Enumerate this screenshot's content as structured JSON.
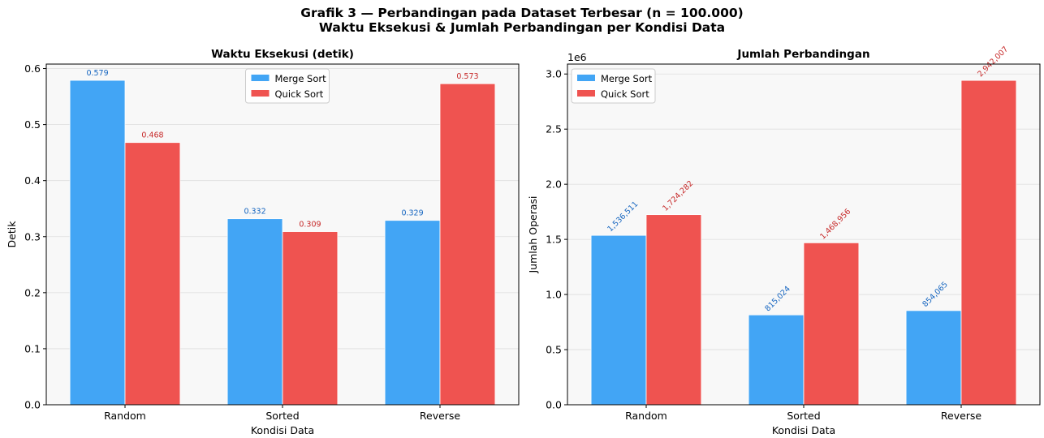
{
  "figure": {
    "suptitle_line1": "Grafik 3 — Perbandingan pada Dataset Terbesar (n = 100.000)",
    "suptitle_line2": "Waktu Eksekusi & Jumlah Perbandingan per Kondisi Data"
  },
  "colors": {
    "merge": "#42a5f5",
    "quick": "#ef5350",
    "merge_label": "#1565c0",
    "quick_label": "#c62828",
    "plot_bg": "#f8f8f8",
    "grid": "#dddddd"
  },
  "chart_data": [
    {
      "type": "bar",
      "title": "Waktu Eksekusi (detik)",
      "xlabel": "Kondisi Data",
      "ylabel": "Detik",
      "categories": [
        "Random",
        "Sorted",
        "Reverse"
      ],
      "series": [
        {
          "name": "Merge Sort",
          "values": [
            0.579,
            0.332,
            0.329
          ],
          "labels": [
            "0.579",
            "0.332",
            "0.329"
          ]
        },
        {
          "name": "Quick Sort",
          "values": [
            0.468,
            0.309,
            0.573
          ],
          "labels": [
            "0.468",
            "0.309",
            "0.573"
          ]
        }
      ],
      "ylim": [
        0,
        0.608
      ],
      "yticks": [
        0.0,
        0.1,
        0.2,
        0.3,
        0.4,
        0.5,
        0.6
      ],
      "ytick_labels": [
        "0.0",
        "0.1",
        "0.2",
        "0.3",
        "0.4",
        "0.5",
        "0.6"
      ],
      "offset_text": "",
      "grid": true,
      "legend": "upper-center",
      "label_rotation": 0
    },
    {
      "type": "bar",
      "title": "Jumlah Perbandingan",
      "xlabel": "Kondisi Data",
      "ylabel": "Jumlah Operasi",
      "categories": [
        "Random",
        "Sorted",
        "Reverse"
      ],
      "series": [
        {
          "name": "Merge Sort",
          "values": [
            1536511,
            815024,
            854065
          ],
          "labels": [
            "1,536,511",
            "815,024",
            "854,065"
          ]
        },
        {
          "name": "Quick Sort",
          "values": [
            1724282,
            1468956,
            2942007
          ],
          "labels": [
            "1,724,282",
            "1,468,956",
            "2,942,007"
          ]
        }
      ],
      "ylim": [
        0,
        3090000
      ],
      "yticks": [
        0,
        500000,
        1000000,
        1500000,
        2000000,
        2500000,
        3000000
      ],
      "ytick_labels": [
        "0.0",
        "0.5",
        "1.0",
        "1.5",
        "2.0",
        "2.5",
        "3.0"
      ],
      "offset_text": "1e6",
      "grid": true,
      "legend": "upper-left",
      "label_rotation": 45
    }
  ]
}
